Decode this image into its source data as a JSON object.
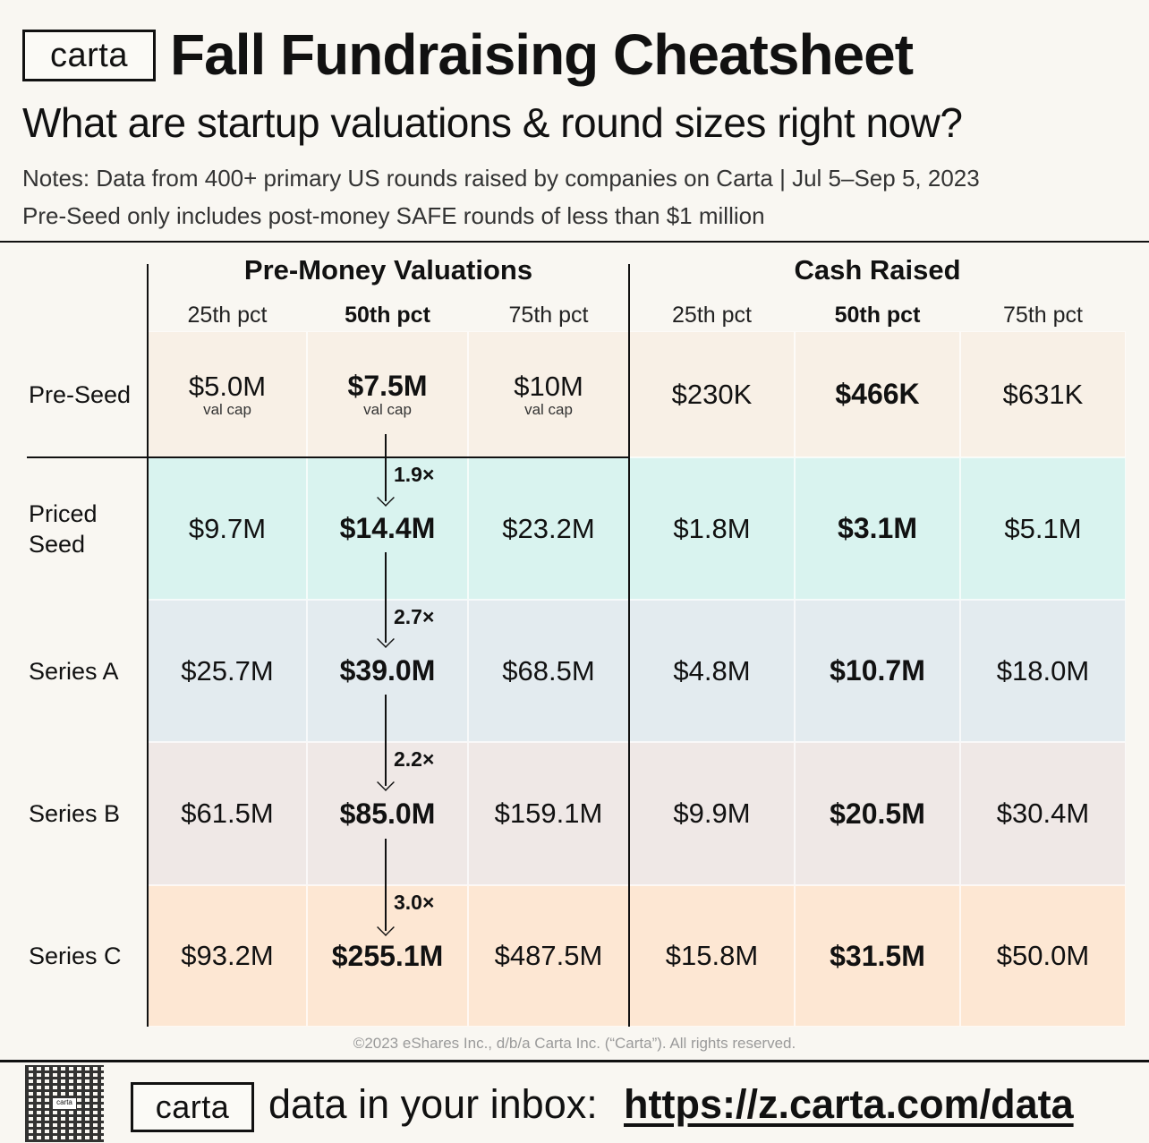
{
  "header": {
    "logo": "carta",
    "title": "Fall Fundraising Cheatsheet",
    "subtitle": "What are startup valuations & round sizes right now?",
    "notes": [
      "Notes: Data from 400+ primary US rounds raised by companies on Carta | Jul 5–Sep 5, 2023",
      "Pre-Seed only includes post-money SAFE rounds of less than $1 million"
    ]
  },
  "chart_data": {
    "type": "table",
    "groups": [
      "Pre-Money Valuations",
      "Cash Raised"
    ],
    "columns": [
      "25th pct",
      "50th pct",
      "75th pct",
      "25th pct",
      "50th pct",
      "75th pct"
    ],
    "rows": [
      {
        "label": "Pre-Seed",
        "color": "#f8f0e6",
        "values": [
          "$5.0M",
          "$7.5M",
          "$10M",
          "$230K",
          "$466K",
          "$631K"
        ],
        "notes": [
          "val cap",
          "val cap",
          "val cap",
          "",
          "",
          ""
        ]
      },
      {
        "label": "Priced Seed",
        "color": "#d9f3ef",
        "values": [
          "$9.7M",
          "$14.4M",
          "$23.2M",
          "$1.8M",
          "$3.1M",
          "$5.1M"
        ]
      },
      {
        "label": "Series A",
        "color": "#e3ebef",
        "values": [
          "$25.7M",
          "$39.0M",
          "$68.5M",
          "$4.8M",
          "$10.7M",
          "$18.0M"
        ]
      },
      {
        "label": "Series B",
        "color": "#efe8e6",
        "values": [
          "$61.5M",
          "$85.0M",
          "$159.1M",
          "$9.9M",
          "$20.5M",
          "$30.4M"
        ]
      },
      {
        "label": "Series C",
        "color": "#fde7d3",
        "values": [
          "$93.2M",
          "$255.1M",
          "$487.5M",
          "$15.8M",
          "$31.5M",
          "$50.0M"
        ]
      }
    ],
    "step_ups": [
      "1.9×",
      "2.7×",
      "2.2×",
      "3.0×"
    ]
  },
  "footer": {
    "copyright": "©2023 eShares Inc., d/b/a Carta Inc. (“Carta”). All rights reserved.",
    "logo": "carta",
    "qr_label": "carta",
    "inbox": "data in your inbox:",
    "url": "https://z.carta.com/data"
  }
}
